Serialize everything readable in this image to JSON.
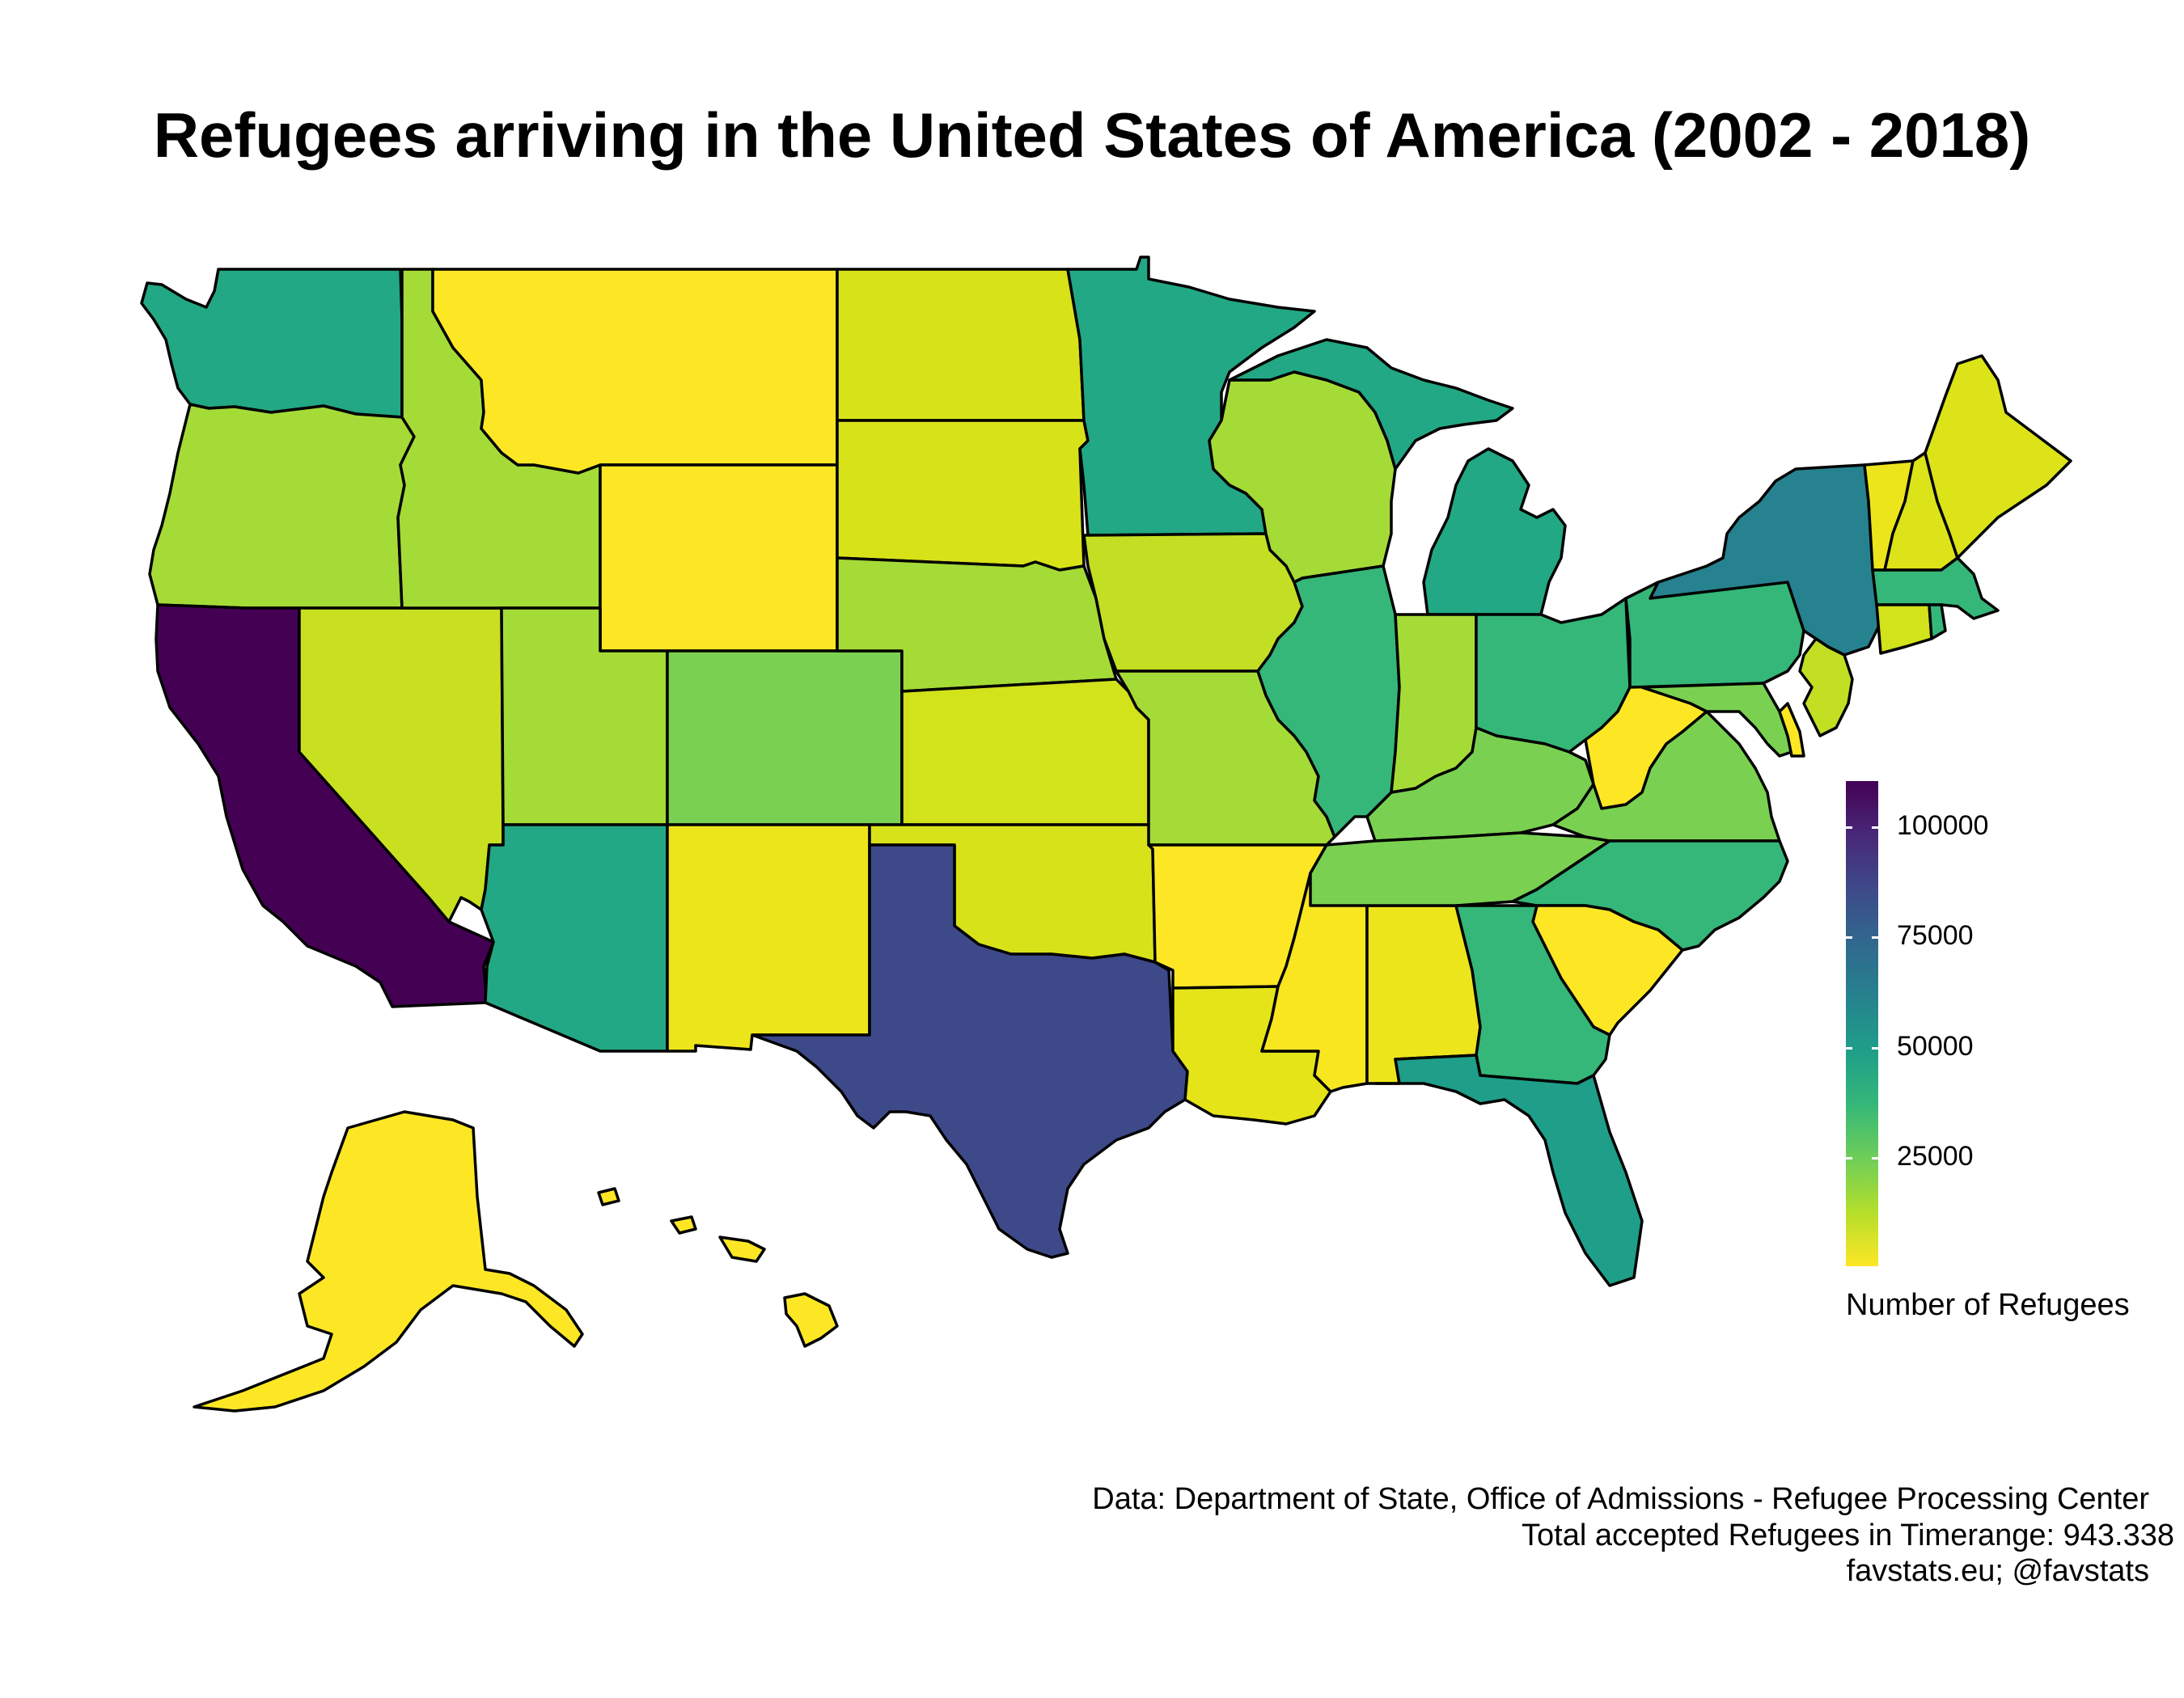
{
  "title": "Refugees arriving in the United States of America (2002 - 2018)",
  "legend": {
    "title": "Number of Refugees",
    "ticks": [
      "100000",
      "75000",
      "50000",
      "25000"
    ],
    "tick_values": [
      100000,
      75000,
      50000,
      25000
    ],
    "min": 0,
    "max": 110000,
    "colors": [
      "#fde725",
      "#b5de2b",
      "#6ece58",
      "#35b779",
      "#1f9e89",
      "#26828e",
      "#31688e",
      "#3e4989",
      "#482878",
      "#440154"
    ]
  },
  "captions": [
    "Data: Department of State, Office of Admissions - Refugee Processing Center",
    "Total accepted Refugees in Timerange: 943.338",
    "favstats.eu; @favstats"
  ],
  "chart_data": {
    "type": "choropleth",
    "colors": {
      "California": "#440154",
      "Texas": "#3e4989",
      "New York": "#26828e",
      "Washington": "#22a884",
      "Arizona": "#22a884",
      "Florida": "#1f9e89",
      "Minnesota": "#22a884",
      "Michigan": "#22a884",
      "Georgia": "#35b779",
      "Illinois": "#35b779",
      "Ohio": "#35b779",
      "Pennsylvania": "#35b779",
      "North Carolina": "#35b779",
      "Massachusetts": "#35b779",
      "Colorado": "#7ad151",
      "Kentucky": "#7ad151",
      "Tennessee": "#7ad151",
      "Virginia": "#7ad151",
      "Maryland": "#7ad151",
      "Utah": "#a5db36",
      "Idaho": "#a5db36",
      "Oregon": "#a5db36",
      "Indiana": "#a5db36",
      "Missouri": "#a5db36",
      "Wisconsin": "#a5db36",
      "Nebraska": "#a5db36",
      "Iowa": "#c2df23",
      "Nevada": "#c8e020",
      "Kansas": "#d2e21b",
      "Oklahoma": "#d8e219",
      "North Dakota": "#d8e219",
      "South Dakota": "#d8e219",
      "Maine": "#dce319",
      "New Jersey": "#c2df23",
      "Connecticut": "#d2e21b",
      "Louisiana": "#e5e419",
      "Alabama": "#ede51b",
      "New Mexico": "#ede51b",
      "Vermont": "#ede51b",
      "New Hampshire": "#dce319",
      "Montana": "#fde725",
      "Wyoming": "#fde725",
      "Arkansas": "#fde725",
      "Mississippi": "#f8e621",
      "South Carolina": "#fde725",
      "West Virginia": "#fde725",
      "Alaska": "#fde725",
      "Hawaii": "#fde725",
      "Delaware": "#fde725",
      "Rhode Island": "#35b779"
    }
  }
}
